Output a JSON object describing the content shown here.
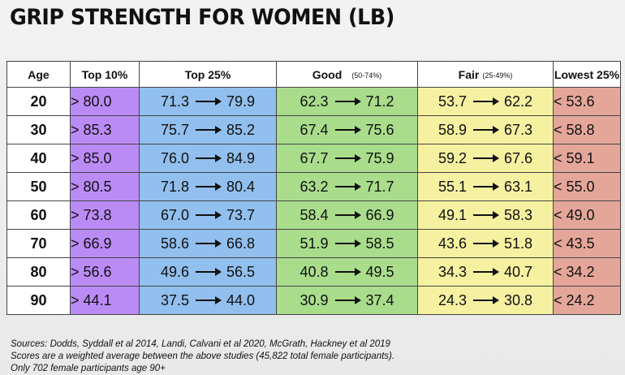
{
  "title": "GRIP STRENGTH FOR WOMEN (LB)",
  "table": {
    "headers": {
      "age": "Age",
      "top10": "Top 10%",
      "top25": "Top 25%",
      "good": "Good",
      "good_sub": "(50-74%)",
      "fair": "Fair",
      "fair_sub": "(25-49%)",
      "low": "Lowest 25%"
    },
    "rows": [
      {
        "age": "20",
        "top10": "> 80.0",
        "top25_lo": "71.3",
        "top25_hi": "79.9",
        "good_lo": "62.3",
        "good_hi": "71.2",
        "fair_lo": "53.7",
        "fair_hi": "62.2",
        "low": "< 53.6"
      },
      {
        "age": "30",
        "top10": "> 85.3",
        "top25_lo": "75.7",
        "top25_hi": "85.2",
        "good_lo": "67.4",
        "good_hi": "75.6",
        "fair_lo": "58.9",
        "fair_hi": "67.3",
        "low": "< 58.8"
      },
      {
        "age": "40",
        "top10": "> 85.0",
        "top25_lo": "76.0",
        "top25_hi": "84.9",
        "good_lo": "67.7",
        "good_hi": "75.9",
        "fair_lo": "59.2",
        "fair_hi": "67.6",
        "low": "< 59.1"
      },
      {
        "age": "50",
        "top10": "> 80.5",
        "top25_lo": "71.8",
        "top25_hi": "80.4",
        "good_lo": "63.2",
        "good_hi": "71.7",
        "fair_lo": "55.1",
        "fair_hi": "63.1",
        "low": "< 55.0"
      },
      {
        "age": "60",
        "top10": "> 73.8",
        "top25_lo": "67.0",
        "top25_hi": "73.7",
        "good_lo": "58.4",
        "good_hi": "66.9",
        "fair_lo": "49.1",
        "fair_hi": "58.3",
        "low": "< 49.0"
      },
      {
        "age": "70",
        "top10": "> 66.9",
        "top25_lo": "58.6",
        "top25_hi": "66.8",
        "good_lo": "51.9",
        "good_hi": "58.5",
        "fair_lo": "43.6",
        "fair_hi": "51.8",
        "low": "< 43.5"
      },
      {
        "age": "80",
        "top10": "> 56.6",
        "top25_lo": "49.6",
        "top25_hi": "56.5",
        "good_lo": "40.8",
        "good_hi": "49.5",
        "fair_lo": "34.3",
        "fair_hi": "40.7",
        "low": "< 34.2"
      },
      {
        "age": "90",
        "top10": "> 44.1",
        "top25_lo": "37.5",
        "top25_hi": "44.0",
        "good_lo": "30.9",
        "good_hi": "37.4",
        "fair_lo": "24.3",
        "fair_hi": "30.8",
        "low": "< 24.2"
      }
    ]
  },
  "colors": {
    "top10": "#bb8bf5",
    "top25": "#91bfee",
    "good": "#a9dd8c",
    "fair": "#f5f1a1",
    "low": "#e5a69a"
  },
  "footnotes": [
    "Sources:  Dodds, Syddall et al 2014, Landi, Calvani et al 2020, McGrath, Hackney et al 2019",
    "Scores are a weighted average between the above studies (45,822 total female participants).",
    "Only 702 female participants age 90+"
  ]
}
